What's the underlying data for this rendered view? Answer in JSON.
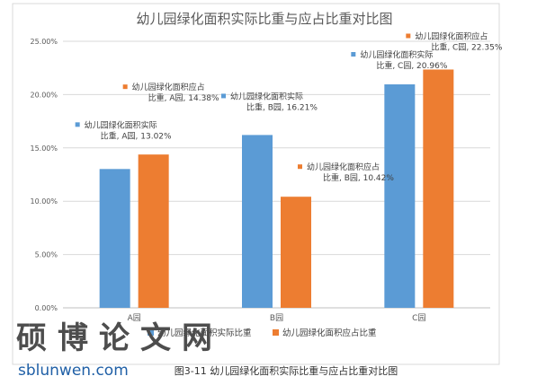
{
  "chart_data": {
    "type": "bar",
    "title": "幼儿园绿化面积实际比重与应占比重对比图",
    "categories": [
      "A园",
      "B园",
      "C园"
    ],
    "series": [
      {
        "name": "幼儿园绿化面积实际比重",
        "values": [
          13.02,
          16.21,
          20.96
        ],
        "color": "#5b9bd5"
      },
      {
        "name": "幼儿园绿化面积应占比重",
        "values": [
          14.38,
          10.42,
          22.35
        ],
        "color": "#ed7d31"
      }
    ],
    "ylim": [
      0,
      25
    ],
    "yticks": [
      "0.00%",
      "5.00%",
      "10.00%",
      "15.00%",
      "20.00%",
      "25.00%"
    ],
    "grid": true,
    "legend": "bottom",
    "annotations": [
      {
        "line1": "幼儿园绿化面积实际",
        "line2": "比重, A园, 13.02%"
      },
      {
        "line1": "幼儿园绿化面积应占",
        "line2": "比重, A园, 14.38%"
      },
      {
        "line1": "幼儿园绿化面积实际",
        "line2": "比重, B园, 16.21%"
      },
      {
        "line1": "幼儿园绿化面积应占",
        "line2": "比重, B园, 10.42%"
      },
      {
        "line1": "幼儿园绿化面积实际",
        "line2": "比重, C园, 20.96%"
      },
      {
        "line1": "幼儿园绿化面积应占",
        "line2": "比重, C园, 22.35%"
      }
    ]
  },
  "caption": "图3-11 幼儿园绿化面积实际比重与应占比重对比图",
  "watermark": {
    "chars": "硕博论文网",
    "url": "sblunwen.com"
  }
}
